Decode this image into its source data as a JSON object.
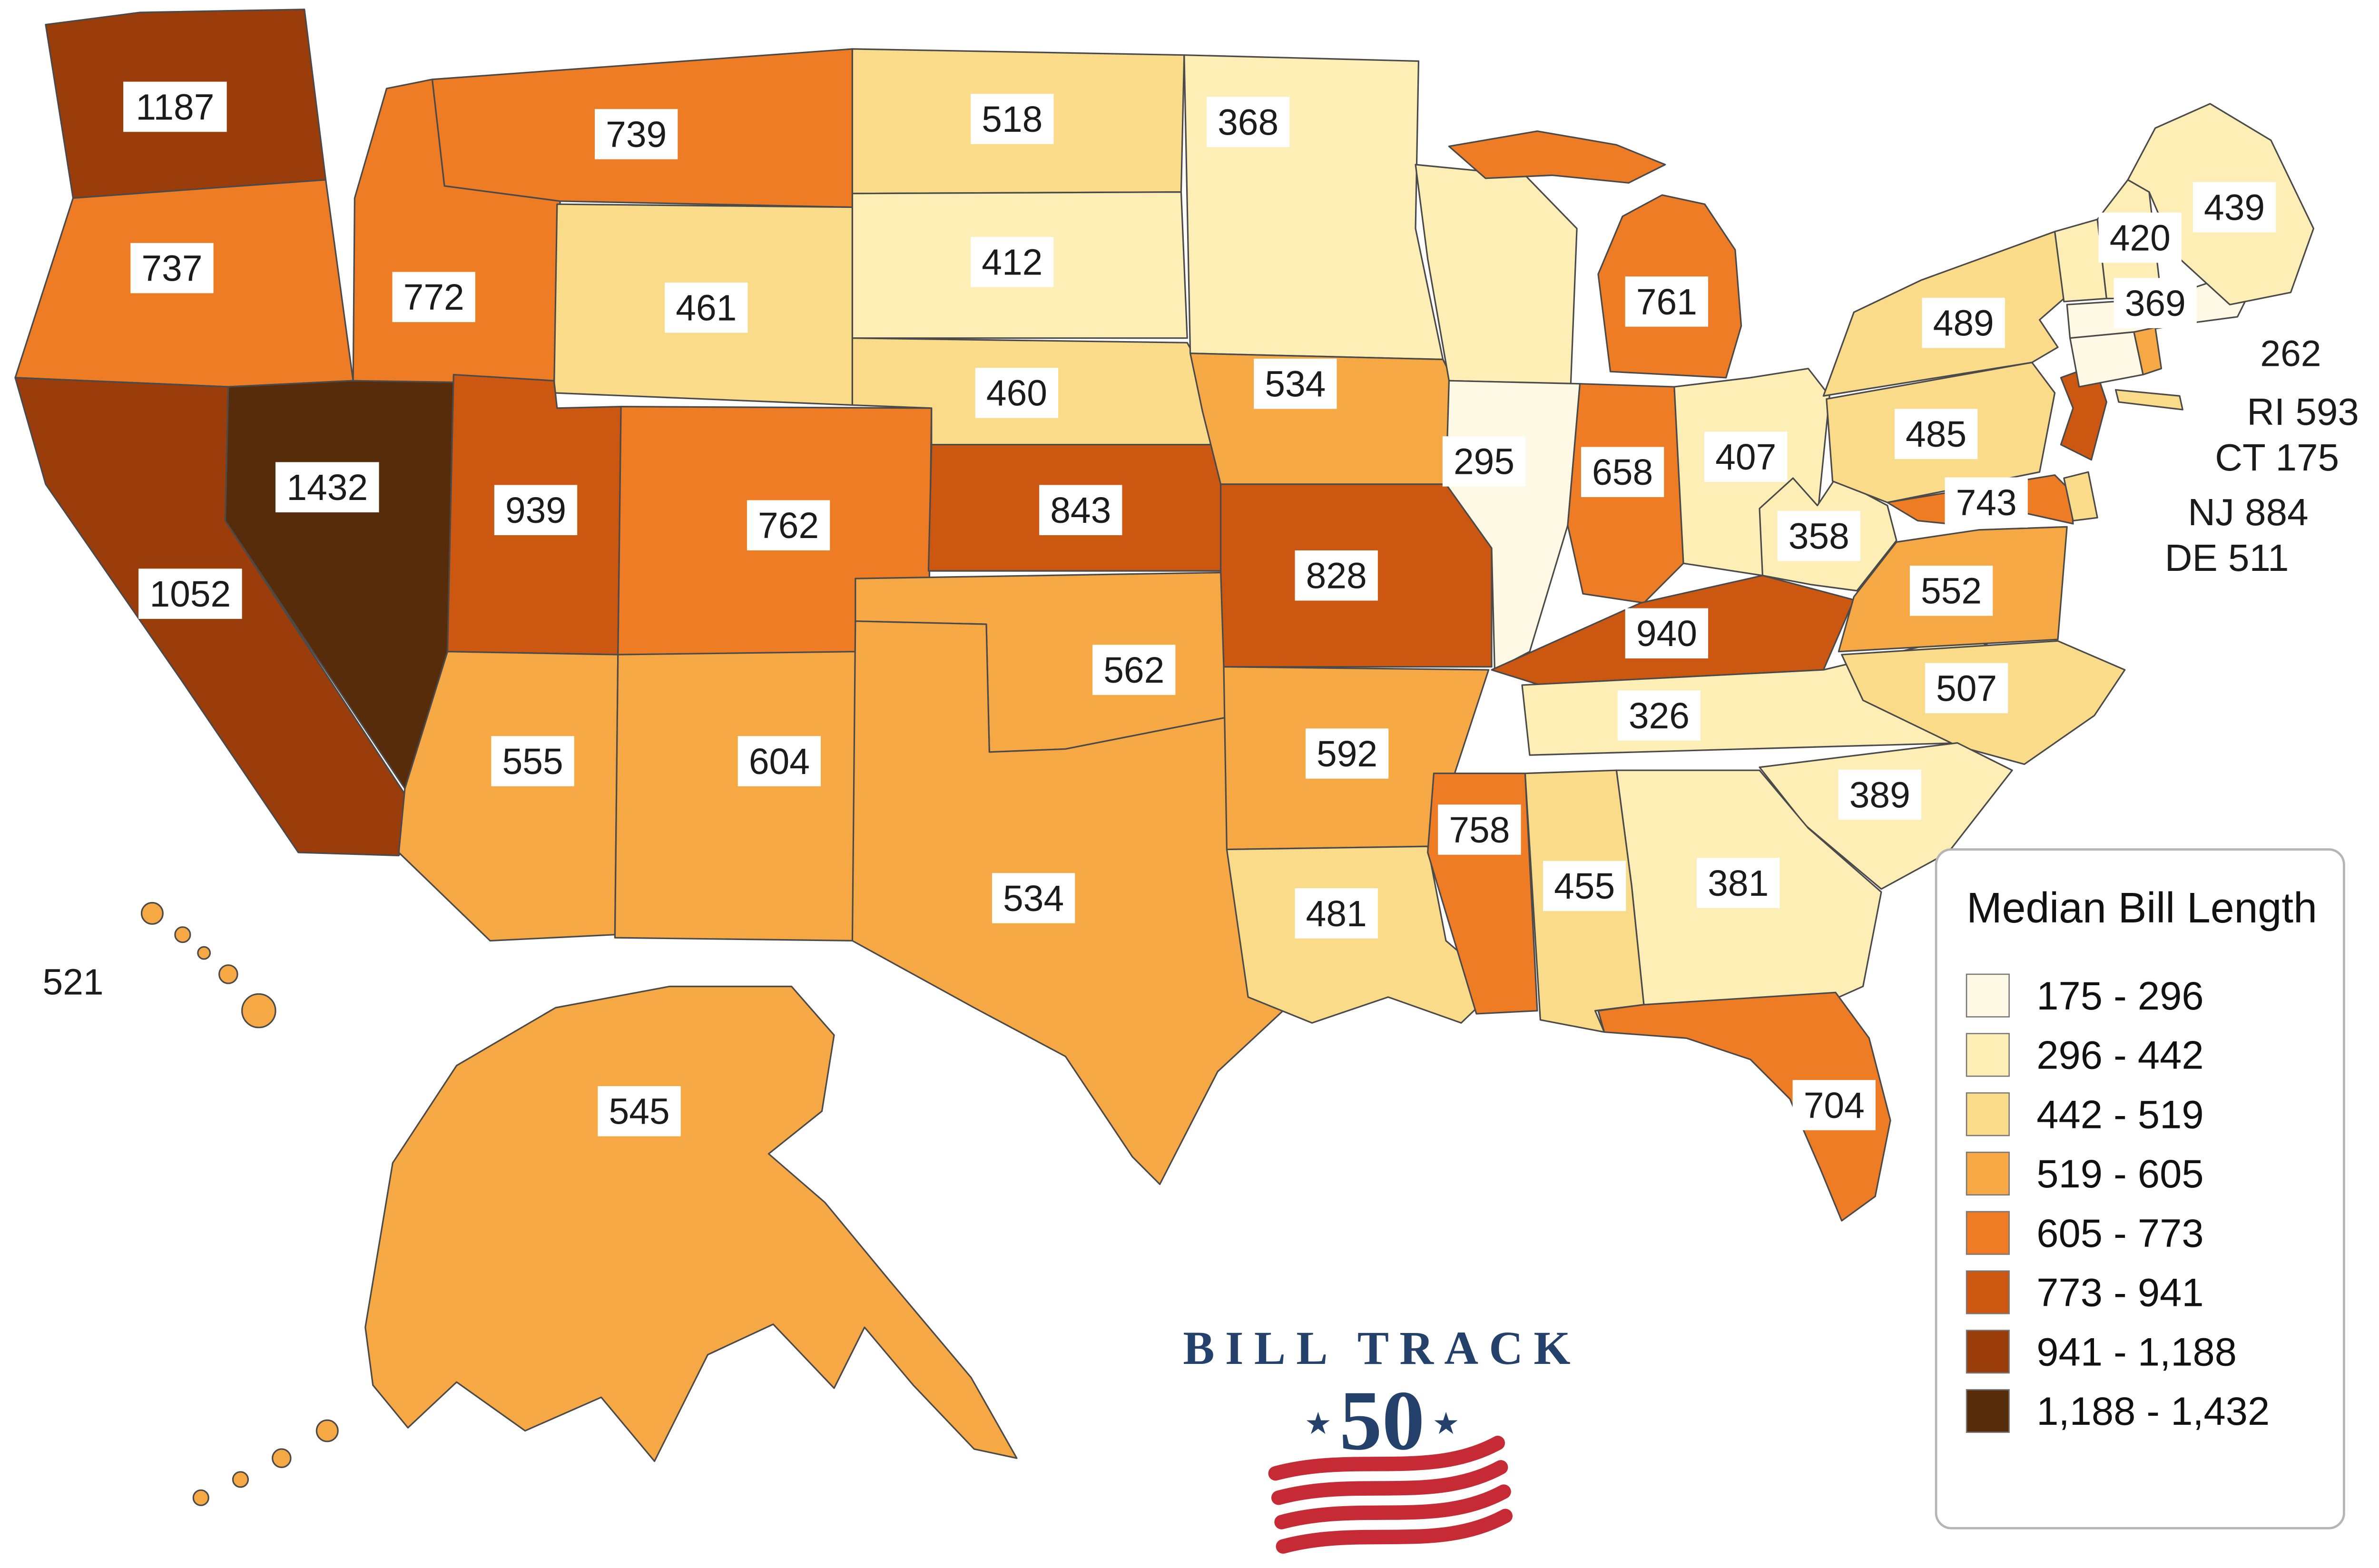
{
  "legend": {
    "title": "Median Bill Length"
  },
  "logo": {
    "line1": "BILL TRACK",
    "number": "50",
    "star": "★"
  },
  "chart_data": {
    "type": "choropleth",
    "metric": "Median Bill Length",
    "breaks": [
      175,
      296,
      442,
      519,
      605,
      773,
      941,
      1188,
      1432
    ],
    "buckets": [
      {
        "label": "175 - 296",
        "color": "#FEF9E4"
      },
      {
        "label": "296 - 442",
        "color": "#FCEEB5"
      },
      {
        "label": "442 - 519",
        "color": "#FADB8A"
      },
      {
        "label": "519 - 605",
        "color": "#F6A845"
      },
      {
        "label": "605 - 773",
        "color": "#EE7C25"
      },
      {
        "label": "773 - 941",
        "color": "#CC5711"
      },
      {
        "label": "941 - 1,188",
        "color": "#9A3D0B"
      },
      {
        "label": "1,188 - 1,432",
        "color": "#572C0B"
      }
    ],
    "states": [
      {
        "code": "WA",
        "value": 1187
      },
      {
        "code": "OR",
        "value": 737
      },
      {
        "code": "CA",
        "value": 1052
      },
      {
        "code": "NV",
        "value": 1432
      },
      {
        "code": "ID",
        "value": 772
      },
      {
        "code": "MT",
        "value": 739
      },
      {
        "code": "WY",
        "value": 461
      },
      {
        "code": "UT",
        "value": 939
      },
      {
        "code": "CO",
        "value": 762
      },
      {
        "code": "AZ",
        "value": 555
      },
      {
        "code": "NM",
        "value": 604
      },
      {
        "code": "ND",
        "value": 518
      },
      {
        "code": "SD",
        "value": 412
      },
      {
        "code": "NE",
        "value": 460
      },
      {
        "code": "KS",
        "value": 843
      },
      {
        "code": "OK",
        "value": 562
      },
      {
        "code": "TX",
        "value": 534
      },
      {
        "code": "MN",
        "value": 368
      },
      {
        "code": "IA",
        "value": 534
      },
      {
        "code": "MO",
        "value": 828
      },
      {
        "code": "AR",
        "value": 592
      },
      {
        "code": "LA",
        "value": 481
      },
      {
        "code": "WI",
        "value": null,
        "bucket": "296 - 442"
      },
      {
        "code": "IL",
        "value": 295
      },
      {
        "code": "MI",
        "value": 761
      },
      {
        "code": "IN",
        "value": 658
      },
      {
        "code": "OH",
        "value": 407
      },
      {
        "code": "KY",
        "value": 940
      },
      {
        "code": "TN",
        "value": 326
      },
      {
        "code": "WV",
        "value": 358
      },
      {
        "code": "VA",
        "value": 552
      },
      {
        "code": "NC",
        "value": 507
      },
      {
        "code": "SC",
        "value": 389
      },
      {
        "code": "GA",
        "value": 381
      },
      {
        "code": "AL",
        "value": 455
      },
      {
        "code": "MS",
        "value": 758
      },
      {
        "code": "FL",
        "value": 704
      },
      {
        "code": "NY",
        "value": 489
      },
      {
        "code": "PA",
        "value": 485
      },
      {
        "code": "NJ",
        "value": 884
      },
      {
        "code": "MD",
        "value": 743
      },
      {
        "code": "DE",
        "value": 511
      },
      {
        "code": "VT",
        "value": 369
      },
      {
        "code": "NH",
        "value": 420
      },
      {
        "code": "MA",
        "value": 262
      },
      {
        "code": "CT",
        "value": 175
      },
      {
        "code": "RI",
        "value": 593
      },
      {
        "code": "ME",
        "value": 439
      },
      {
        "code": "AK",
        "value": 545
      },
      {
        "code": "HI",
        "value": 521
      }
    ],
    "callouts": [
      {
        "code": "RI",
        "label": "RI 593"
      },
      {
        "code": "CT",
        "label": "CT 175"
      },
      {
        "code": "NJ",
        "label": "NJ 884"
      },
      {
        "code": "DE",
        "label": "DE 511"
      }
    ]
  }
}
